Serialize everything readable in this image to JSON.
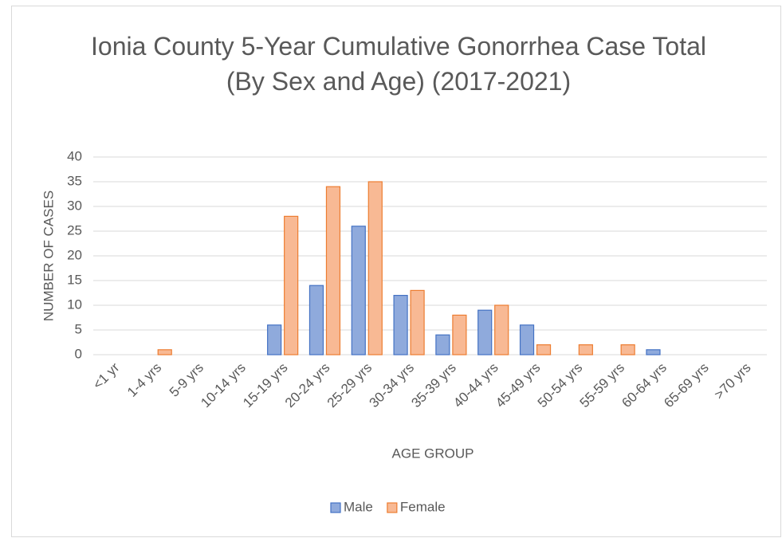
{
  "chart_data": {
    "type": "bar",
    "title": "Ionia County 5-Year Cumulative Gonorrhea Case Total\n(By Sex and Age) (2017-2021)",
    "x_label": "AGE GROUP",
    "y_label": "NUMBER OF CASES",
    "categories": [
      "<1 yr",
      "1-4 yrs",
      "5-9 yrs",
      "10-14 yrs",
      "15-19 yrs",
      "20-24 yrs",
      "25-29 yrs",
      "30-34 yrs",
      "35-39 yrs",
      "40-44 yrs",
      "45-49 yrs",
      "50-54 yrs",
      "55-59 yrs",
      "60-64 yrs",
      "65-69 yrs",
      ">70 yrs"
    ],
    "series": [
      {
        "name": "Male",
        "color": "#8faadc",
        "edge": "#4472c4",
        "values": [
          0,
          0,
          0,
          0,
          6,
          14,
          26,
          12,
          4,
          9,
          6,
          0,
          0,
          1,
          0,
          0
        ]
      },
      {
        "name": "Female",
        "color": "#f8b994",
        "edge": "#ed7d31",
        "values": [
          0,
          1,
          0,
          0,
          28,
          34,
          35,
          13,
          8,
          10,
          2,
          2,
          2,
          0,
          0,
          0
        ]
      }
    ],
    "ylim": [
      0,
      40
    ],
    "yticks": [
      0,
      5,
      10,
      15,
      20,
      25,
      30,
      35,
      40
    ],
    "grid": true,
    "legend": "bottom"
  }
}
